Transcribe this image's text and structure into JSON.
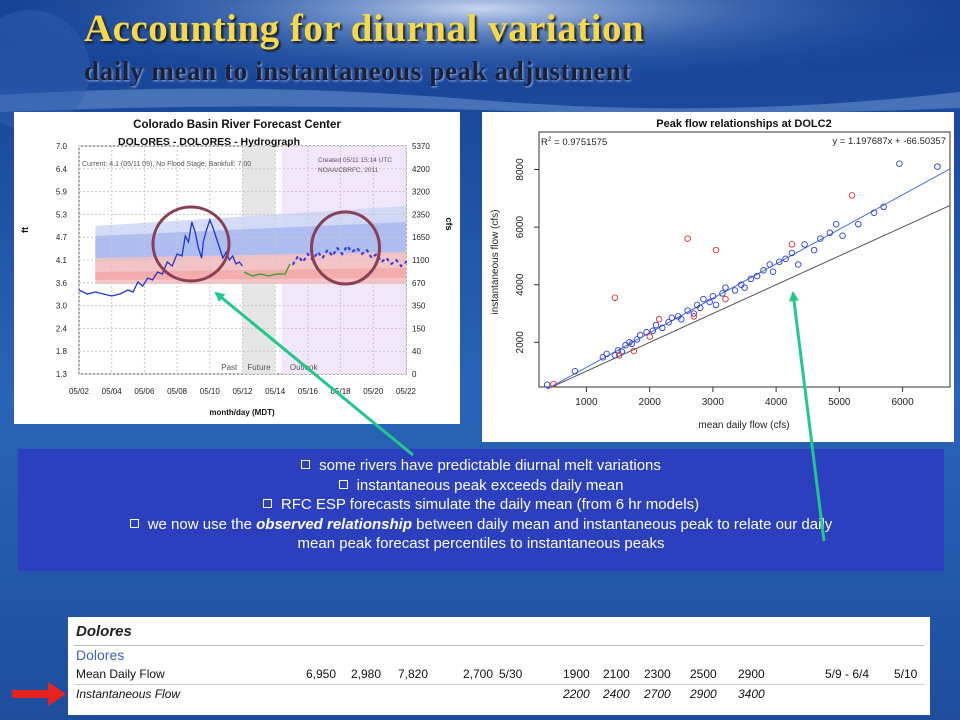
{
  "slide": {
    "title": "Accounting for diurnal variation",
    "subtitle": "daily mean to instantaneous peak adjustment"
  },
  "hydrograph": {
    "header1": "Colorado Basin River Forecast Center",
    "header2": "DOLORES - DOLORES - Hydrograph",
    "current": "Current: 4.1 (05/11 09), No Flood Stage, Bankfull: 7.00",
    "created1": "Created 05/11 15:14 UTC",
    "created2": "NOAA/CBRFC, 2011",
    "left_axis_label": "ft",
    "right_axis_label": "cfs",
    "left_ticks": [
      "7.0",
      "6.4",
      "5.9",
      "5.3",
      "4.7",
      "4.1",
      "3.6",
      "3.0",
      "2.4",
      "1.8",
      "1.3"
    ],
    "right_ticks": [
      "5370",
      "4200",
      "3200",
      "2350",
      "1650",
      "1100",
      "670",
      "350",
      "150",
      "40",
      "0"
    ],
    "x_ticks": [
      "05/02",
      "05/04",
      "05/06",
      "05/08",
      "05/10",
      "05/12",
      "05/14",
      "05/16",
      "05/18",
      "05/20",
      "05/22"
    ],
    "x_label": "month/day (MDT)",
    "past_label": "Past",
    "future_label": "Future",
    "outlook_label": "Outlook"
  },
  "scatter": {
    "title": "Peak flow relationships at DOLC2",
    "r2_prefix": "R",
    "r2_value": " = 0.9751575",
    "equation": "y = 1.197687x + -66.50357",
    "xlabel": "mean daily flow (cfs)",
    "ylabel": "instantaneous flow (cfs)",
    "x_ticks": [
      "1000",
      "2000",
      "3000",
      "4000",
      "5000",
      "6000"
    ],
    "y_ticks": [
      "2000",
      "4000",
      "6000",
      "8000"
    ]
  },
  "chart_data": [
    {
      "type": "line",
      "title": "DOLORES - DOLORES - Hydrograph",
      "xlabel": "month/day (MDT)",
      "ylabel": "ft",
      "ylim": [
        1.3,
        7.0
      ],
      "x": [
        "05/02",
        "05/04",
        "05/06",
        "05/08",
        "05/10",
        "05/12",
        "05/14",
        "05/16",
        "05/18",
        "05/20",
        "05/22"
      ],
      "series": [
        {
          "name": "observed",
          "color": "#1f35c9",
          "points": [
            [
              0.0,
              3.4
            ],
            [
              0.5,
              3.3
            ],
            [
              1.0,
              3.35
            ],
            [
              1.5,
              3.3
            ],
            [
              2.0,
              3.25
            ],
            [
              2.5,
              3.3
            ],
            [
              3.0,
              3.4
            ],
            [
              3.3,
              3.35
            ],
            [
              3.6,
              3.6
            ],
            [
              3.9,
              3.5
            ],
            [
              4.2,
              3.7
            ],
            [
              4.5,
              3.65
            ],
            [
              4.8,
              3.85
            ],
            [
              5.1,
              3.8
            ],
            [
              5.4,
              4.1
            ],
            [
              5.7,
              4.0
            ],
            [
              6.0,
              4.3
            ],
            [
              6.3,
              4.25
            ],
            [
              6.5,
              4.75
            ],
            [
              6.7,
              4.6
            ],
            [
              6.9,
              5.1
            ],
            [
              7.1,
              4.85
            ],
            [
              7.3,
              4.45
            ],
            [
              7.5,
              4.2
            ],
            [
              7.6,
              4.6
            ],
            [
              7.8,
              4.9
            ],
            [
              8.0,
              5.15
            ],
            [
              8.2,
              4.95
            ],
            [
              8.4,
              4.7
            ],
            [
              8.6,
              4.45
            ],
            [
              8.8,
              4.2
            ],
            [
              9.0,
              4.35
            ],
            [
              9.2,
              4.15
            ],
            [
              9.4,
              4.25
            ],
            [
              9.6,
              4.05
            ],
            [
              9.8,
              4.1
            ],
            [
              10.0,
              4.0
            ]
          ]
        },
        {
          "name": "future",
          "color": "#22a722",
          "points": [
            [
              10.1,
              3.85
            ],
            [
              10.6,
              3.75
            ],
            [
              11.1,
              3.8
            ],
            [
              11.6,
              3.75
            ],
            [
              12.1,
              3.8
            ],
            [
              12.6,
              3.8
            ],
            [
              12.9,
              4.05
            ]
          ]
        },
        {
          "name": "outlook",
          "color": "#3a3ae0",
          "points": [
            [
              13.1,
              4.05
            ],
            [
              13.4,
              4.25
            ],
            [
              13.7,
              4.1
            ],
            [
              14.0,
              4.3
            ],
            [
              14.3,
              4.15
            ],
            [
              14.6,
              4.35
            ],
            [
              14.9,
              4.2
            ],
            [
              15.2,
              4.4
            ],
            [
              15.5,
              4.25
            ],
            [
              15.8,
              4.45
            ],
            [
              16.1,
              4.3
            ],
            [
              16.4,
              4.5
            ],
            [
              16.7,
              4.35
            ],
            [
              17.0,
              4.45
            ],
            [
              17.3,
              4.3
            ],
            [
              17.6,
              4.4
            ],
            [
              17.9,
              4.2
            ],
            [
              18.2,
              4.3
            ],
            [
              18.5,
              4.1
            ],
            [
              18.8,
              4.2
            ],
            [
              19.1,
              4.05
            ],
            [
              19.4,
              4.15
            ],
            [
              19.7,
              4.0
            ],
            [
              20.0,
              4.1
            ]
          ]
        }
      ]
    },
    {
      "type": "scatter",
      "title": "Peak flow relationships at DOLC2",
      "xlabel": "mean daily flow (cfs)",
      "ylabel": "instantaneous flow (cfs)",
      "xlim": [
        250,
        6750
      ],
      "ylim": [
        450,
        9300
      ],
      "fit": {
        "slope": 1.197687,
        "intercept": -66.50357
      },
      "series": [
        {
          "color": "#3040d0",
          "points": [
            [
              380,
              530
            ],
            [
              820,
              1000
            ],
            [
              1260,
              1480
            ],
            [
              1320,
              1600
            ],
            [
              1450,
              1550
            ],
            [
              1500,
              1720
            ],
            [
              1560,
              1680
            ],
            [
              1620,
              1900
            ],
            [
              1680,
              2000
            ],
            [
              1720,
              1950
            ],
            [
              1800,
              2100
            ],
            [
              1850,
              2250
            ],
            [
              1950,
              2350
            ],
            [
              2050,
              2400
            ],
            [
              2100,
              2600
            ],
            [
              2200,
              2500
            ],
            [
              2300,
              2700
            ],
            [
              2350,
              2850
            ],
            [
              2450,
              2900
            ],
            [
              2500,
              2800
            ],
            [
              2600,
              3100
            ],
            [
              2700,
              3000
            ],
            [
              2750,
              3300
            ],
            [
              2800,
              3200
            ],
            [
              2850,
              3500
            ],
            [
              2950,
              3400
            ],
            [
              3000,
              3600
            ],
            [
              3050,
              3300
            ],
            [
              3150,
              3700
            ],
            [
              3200,
              3900
            ],
            [
              3350,
              3800
            ],
            [
              3450,
              4000
            ],
            [
              3500,
              3900
            ],
            [
              3600,
              4200
            ],
            [
              3700,
              4300
            ],
            [
              3800,
              4500
            ],
            [
              3900,
              4700
            ],
            [
              3950,
              4450
            ],
            [
              4050,
              4800
            ],
            [
              4150,
              4900
            ],
            [
              4250,
              5100
            ],
            [
              4350,
              4700
            ],
            [
              4450,
              5400
            ],
            [
              4600,
              5200
            ],
            [
              4700,
              5600
            ],
            [
              4850,
              5800
            ],
            [
              4950,
              6100
            ],
            [
              5050,
              5700
            ],
            [
              5300,
              6100
            ],
            [
              5550,
              6500
            ],
            [
              5700,
              6700
            ],
            [
              5950,
              8200
            ],
            [
              6550,
              8100
            ]
          ]
        },
        {
          "color": "#e03030",
          "points": [
            [
              480,
              550
            ],
            [
              1450,
              3550
            ],
            [
              1520,
              1550
            ],
            [
              1750,
              1700
            ],
            [
              2000,
              2200
            ],
            [
              2150,
              2800
            ],
            [
              2600,
              5600
            ],
            [
              2700,
              2900
            ],
            [
              3050,
              5200
            ],
            [
              3200,
              3500
            ],
            [
              4250,
              5400
            ],
            [
              5200,
              7100
            ]
          ]
        }
      ]
    }
  ],
  "bullets": [
    {
      "text": "some rivers have predictable diurnal melt variations"
    },
    {
      "text": "instantaneous peak exceeds daily mean"
    },
    {
      "text": "RFC ESP forecasts simulate the daily mean (from 6 hr models)"
    },
    {
      "before": "we now use the ",
      "em": "observed relationship",
      "after": " between daily mean and instantaneous peak to relate our daily",
      "cont": "mean peak forecast percentiles to instantaneous peaks"
    }
  ],
  "table": {
    "site": "Dolores",
    "subsite": "Dolores",
    "rows": [
      {
        "label": "Mean Daily Flow",
        "cells": [
          "6,950",
          "2,980",
          "7,820",
          "2,700",
          "5/30",
          "1900",
          "2100",
          "2300",
          "2500",
          "2900",
          "5/9 - 6/4",
          "5/10"
        ]
      },
      {
        "label": "Instantaneous Flow",
        "cells": [
          "",
          "",
          "",
          "",
          "",
          "2200",
          "2400",
          "2700",
          "2900",
          "3400",
          "",
          ""
        ]
      }
    ]
  },
  "colors": {
    "title": "#f6d94a",
    "bullet_box": "#2b3fbf",
    "callout_arrow": "#22c88a",
    "pointer_arrow": "#e8231d"
  }
}
